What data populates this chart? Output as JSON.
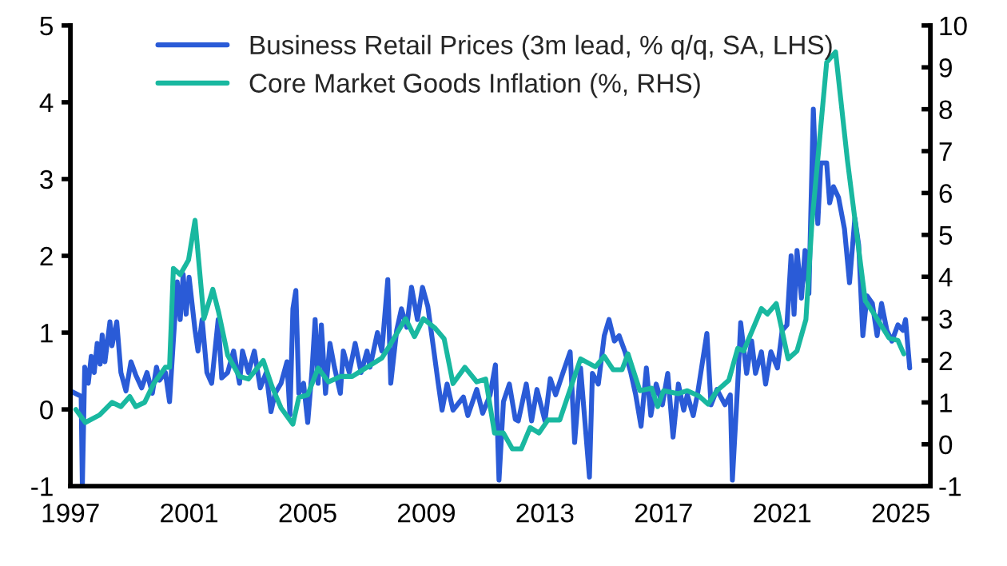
{
  "chart_data": {
    "type": "line",
    "xlim": [
      1997,
      2026
    ],
    "xticks": [
      1997,
      2001,
      2005,
      2009,
      2013,
      2017,
      2021,
      2025
    ],
    "ylim": [
      -1,
      5
    ],
    "yticks": [
      -1,
      0,
      1,
      2,
      3,
      4,
      5
    ],
    "y2lim": [
      -1,
      10
    ],
    "y2ticks": [
      -1,
      0,
      1,
      2,
      3,
      4,
      5,
      6,
      7,
      8,
      9,
      10
    ],
    "grid": false,
    "legend": "top left",
    "line_style": "solid",
    "marker": "none",
    "series": [
      {
        "name": "Business Retail Prices (3m lead, % q/q, SA, LHS)",
        "color": "#2a5bd7",
        "x": [
          1997.0,
          1997.36,
          1997.4,
          1997.48,
          1997.6,
          1997.7,
          1997.8,
          1997.9,
          1998.0,
          1998.07,
          1998.16,
          1998.33,
          1998.4,
          1998.56,
          1998.7,
          1998.87,
          1999.04,
          1999.2,
          1999.4,
          1999.58,
          1999.76,
          1999.9,
          2000.0,
          2000.2,
          2000.34,
          2000.47,
          2000.6,
          2000.7,
          2000.8,
          2000.9,
          2001.0,
          2001.2,
          2001.3,
          2001.44,
          2001.6,
          2001.76,
          2001.98,
          2002.1,
          2002.3,
          2002.5,
          2002.7,
          2002.8,
          2003.0,
          2003.2,
          2003.4,
          2003.6,
          2003.76,
          2003.9,
          2004.1,
          2004.3,
          2004.4,
          2004.5,
          2004.6,
          2004.7,
          2004.86,
          2005.0,
          2005.14,
          2005.25,
          2005.35,
          2005.46,
          2005.6,
          2005.75,
          2005.9,
          2006.1,
          2006.2,
          2006.4,
          2006.6,
          2006.8,
          2007.0,
          2007.1,
          2007.35,
          2007.5,
          2007.7,
          2007.8,
          2008.0,
          2008.16,
          2008.34,
          2008.5,
          2008.7,
          2008.87,
          2009.05,
          2009.23,
          2009.4,
          2009.53,
          2009.7,
          2009.9,
          2010.25,
          2010.4,
          2010.7,
          2010.9,
          2011.15,
          2011.33,
          2011.45,
          2011.6,
          2011.8,
          2012.0,
          2012.1,
          2012.37,
          2012.55,
          2012.73,
          2013.0,
          2013.18,
          2013.36,
          2013.6,
          2013.85,
          2014.0,
          2014.2,
          2014.5,
          2014.6,
          2014.8,
          2015.0,
          2015.16,
          2015.34,
          2015.5,
          2015.7,
          2015.9,
          2016.06,
          2016.24,
          2016.42,
          2016.57,
          2016.75,
          2016.96,
          2017.14,
          2017.32,
          2017.5,
          2017.68,
          2017.8,
          2018.0,
          2018.14,
          2018.46,
          2018.6,
          2018.8,
          2019.07,
          2019.25,
          2019.32,
          2019.5,
          2019.6,
          2019.8,
          2019.97,
          2020.1,
          2020.3,
          2020.44,
          2020.62,
          2020.84,
          2021.0,
          2021.16,
          2021.3,
          2021.4,
          2021.5,
          2021.65,
          2021.77,
          2021.9,
          2022.05,
          2022.2,
          2022.3,
          2022.5,
          2022.6,
          2022.73,
          2022.9,
          2023.1,
          2023.27,
          2023.45,
          2023.58,
          2023.72,
          2023.86,
          2024.04,
          2024.2,
          2024.35,
          2024.53,
          2024.7,
          2024.9,
          2025.07,
          2025.16,
          2025.3
        ],
        "values": [
          0.24,
          0.17,
          -1.0,
          0.55,
          0.34,
          0.69,
          0.48,
          0.86,
          0.59,
          0.97,
          0.62,
          1.14,
          0.83,
          1.14,
          0.48,
          0.24,
          0.62,
          0.45,
          0.28,
          0.48,
          0.21,
          0.55,
          0.38,
          0.48,
          0.1,
          0.9,
          1.66,
          1.17,
          1.76,
          1.24,
          1.72,
          1.03,
          0.76,
          1.17,
          0.48,
          0.34,
          1.17,
          0.41,
          0.48,
          0.76,
          0.34,
          0.76,
          0.48,
          0.76,
          0.28,
          0.48,
          -0.03,
          0.21,
          0.34,
          0.62,
          -0.07,
          1.31,
          1.55,
          0.21,
          0.34,
          -0.17,
          0.48,
          1.17,
          0.34,
          1.1,
          0.21,
          0.86,
          0.55,
          0.21,
          0.76,
          0.48,
          0.86,
          0.48,
          0.76,
          0.55,
          1.0,
          0.76,
          1.69,
          0.34,
          1.03,
          1.31,
          1.07,
          1.59,
          1.17,
          1.59,
          1.34,
          0.83,
          0.34,
          -0.01,
          0.33,
          -0.01,
          0.16,
          -0.08,
          0.26,
          -0.05,
          0.19,
          0.58,
          -0.92,
          0.1,
          0.33,
          -0.13,
          -0.15,
          0.33,
          -0.15,
          0.26,
          -0.15,
          0.4,
          0.19,
          0.47,
          0.75,
          -0.43,
          0.54,
          -0.88,
          0.47,
          0.33,
          0.96,
          1.17,
          0.89,
          0.96,
          0.75,
          0.47,
          0.19,
          -0.22,
          0.54,
          -0.08,
          0.33,
          0.06,
          0.47,
          -0.36,
          0.33,
          -0.01,
          0.19,
          -0.08,
          0.19,
          0.99,
          0.06,
          0.26,
          0.06,
          0.19,
          -0.92,
          0.33,
          1.13,
          0.47,
          0.89,
          0.47,
          0.75,
          0.33,
          0.75,
          0.54,
          1.03,
          1.1,
          2.0,
          1.24,
          2.07,
          1.45,
          2.07,
          1.51,
          3.91,
          2.42,
          3.21,
          3.21,
          2.69,
          2.9,
          2.76,
          2.35,
          1.65,
          2.49,
          2.14,
          0.96,
          1.48,
          1.38,
          0.96,
          1.38,
          1.03,
          0.89,
          1.1,
          1.03,
          1.17,
          0.54
        ]
      },
      {
        "name": "Core Market Goods Inflation (%, RHS)",
        "color": "#19b8a0",
        "axis": "y2",
        "x": [
          1997.18,
          1997.5,
          1997.98,
          1998.4,
          1998.7,
          1999.0,
          1999.2,
          1999.5,
          1999.8,
          2000.2,
          2000.34,
          2000.47,
          2000.7,
          2000.98,
          2001.2,
          2001.5,
          2001.8,
          2002.0,
          2002.3,
          2002.7,
          2003.0,
          2003.5,
          2003.8,
          2004.1,
          2004.5,
          2004.7,
          2005.0,
          2005.35,
          2005.7,
          2006.1,
          2006.5,
          2007.0,
          2007.5,
          2007.8,
          2008.3,
          2008.6,
          2008.9,
          2009.3,
          2009.6,
          2009.9,
          2010.3,
          2010.7,
          2011.0,
          2011.3,
          2011.6,
          2011.9,
          2012.2,
          2012.5,
          2012.8,
          2013.1,
          2013.5,
          2013.8,
          2014.2,
          2014.7,
          2015.0,
          2015.3,
          2015.6,
          2015.8,
          2016.2,
          2016.6,
          2016.8,
          2017.0,
          2017.5,
          2017.8,
          2018.2,
          2018.5,
          2018.8,
          2019.2,
          2019.5,
          2019.7,
          2020.3,
          2020.5,
          2020.8,
          2021.2,
          2021.5,
          2021.8,
          2022.0,
          2022.5,
          2022.8,
          2023.2,
          2023.8,
          2024.1,
          2024.6,
          2024.9,
          2025.1
        ],
        "values": [
          0.83,
          0.52,
          0.7,
          1.0,
          0.9,
          1.14,
          0.9,
          1.0,
          1.44,
          1.84,
          1.84,
          4.2,
          4.05,
          4.4,
          5.35,
          3.0,
          3.7,
          3.14,
          2.13,
          1.62,
          1.56,
          2.0,
          1.37,
          0.87,
          0.48,
          1.12,
          1.18,
          1.82,
          1.49,
          1.62,
          1.62,
          1.84,
          2.06,
          2.4,
          3.0,
          2.57,
          3.0,
          2.77,
          2.52,
          1.45,
          1.84,
          1.49,
          1.56,
          0.27,
          0.27,
          -0.11,
          -0.11,
          0.4,
          0.27,
          0.58,
          0.58,
          1.21,
          2.04,
          1.85,
          2.1,
          1.78,
          1.78,
          2.16,
          1.28,
          1.34,
          0.9,
          1.28,
          1.21,
          1.28,
          1.15,
          0.96,
          1.28,
          1.53,
          2.29,
          2.23,
          3.24,
          3.11,
          3.36,
          2.04,
          2.23,
          2.98,
          5.26,
          9.12,
          9.37,
          6.78,
          3.43,
          3.11,
          2.54,
          2.48,
          2.16
        ]
      }
    ]
  }
}
